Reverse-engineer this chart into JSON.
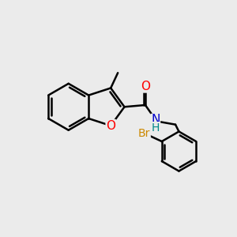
{
  "background_color": "#ebebeb",
  "bond_color": "#000000",
  "bond_width": 1.8,
  "atom_colors": {
    "O": "#ff0000",
    "N": "#0000cc",
    "Br": "#cc8800",
    "C": "#000000",
    "H": "#008888"
  },
  "font_size": 10,
  "figsize": [
    3.0,
    3.0
  ],
  "dpi": 100
}
